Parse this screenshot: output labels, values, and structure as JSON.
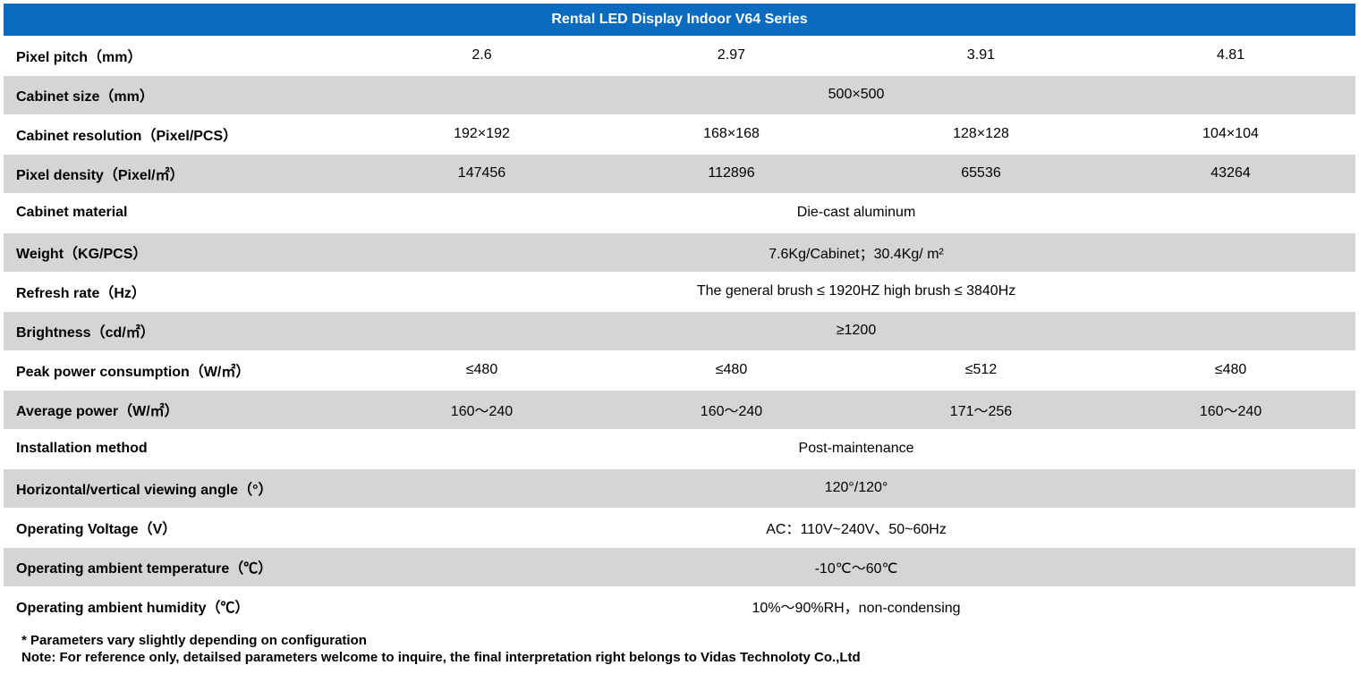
{
  "table": {
    "title": "Rental LED Display  Indoor V64  Series",
    "header_bg": "#0a6bbf",
    "header_color": "#ffffff",
    "row_bg_even": "#ffffff",
    "row_bg_odd": "#d5d5d6",
    "text_color": "#000000",
    "label_col_width": 395,
    "value_col_width": 279,
    "rows": [
      {
        "label": "Pixel pitch（mm）",
        "values": [
          "2.6",
          "2.97",
          "3.91",
          "4.81"
        ],
        "span": false
      },
      {
        "label": "Cabinet size（mm）",
        "values": [
          "500×500"
        ],
        "span": true
      },
      {
        "label": "Cabinet resolution（Pixel/PCS）",
        "values": [
          "192×192",
          "168×168",
          "128×128",
          "104×104"
        ],
        "span": false
      },
      {
        "label": "Pixel density（Pixel/㎡）",
        "values": [
          "147456",
          "112896",
          "65536",
          "43264"
        ],
        "span": false
      },
      {
        "label": "Cabinet material",
        "values": [
          "Die-cast aluminum"
        ],
        "span": true
      },
      {
        "label": "Weight（KG/PCS）",
        "values": [
          "7.6Kg/Cabinet；30.4Kg/ m²"
        ],
        "span": true
      },
      {
        "label": "Refresh rate（Hz）",
        "values": [
          "The general brush ≤ 1920HZ high brush ≤ 3840Hz"
        ],
        "span": true
      },
      {
        "label": "Brightness（cd/㎡）",
        "values": [
          "≥1200"
        ],
        "span": true
      },
      {
        "label": "Peak power consumption（W/㎡）",
        "values": [
          "≤480",
          "≤480",
          "≤512",
          "≤480"
        ],
        "span": false
      },
      {
        "label": "Average power（W/㎡）",
        "values": [
          "160～240",
          "160～240",
          "171～256",
          "160～240"
        ],
        "span": false
      },
      {
        "label": "Installation method",
        "values": [
          "Post-maintenance"
        ],
        "span": true
      },
      {
        "label": "Horizontal/vertical viewing angle（°）",
        "values": [
          "120°/120°"
        ],
        "span": true
      },
      {
        "label": "Operating Voltage（V）",
        "values": [
          "AC：110V~240V、50~60Hz"
        ],
        "span": true
      },
      {
        "label": "Operating ambient temperature（℃）",
        "values": [
          "-10℃～60℃"
        ],
        "span": true
      },
      {
        "label": "Operating ambient humidity（℃）",
        "values": [
          "10%～90%RH，non-condensing"
        ],
        "span": true
      }
    ]
  },
  "footnotes": {
    "line1": "* Parameters vary slightly depending on configuration",
    "line2": "Note: For reference only, detailsed parameters welcome to inquire, the final interpretation right belongs to Vidas Technoloty Co.,Ltd"
  }
}
